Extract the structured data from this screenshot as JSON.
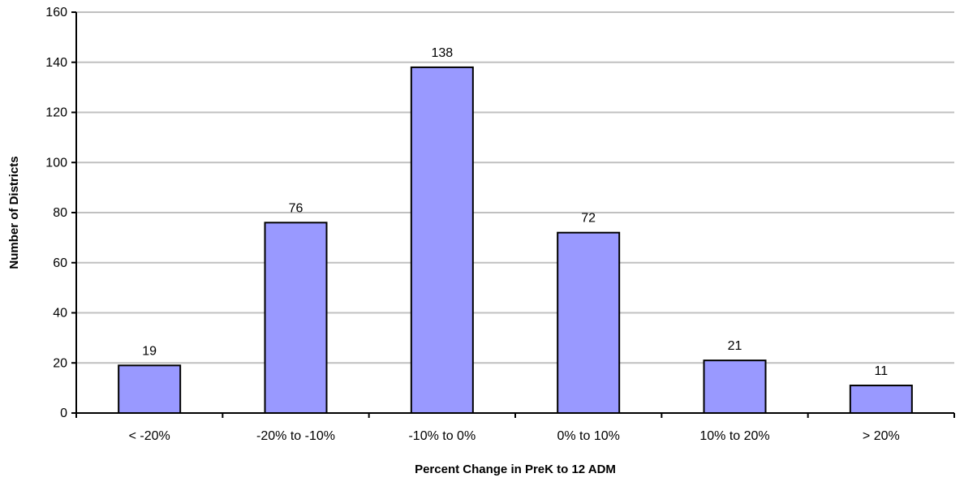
{
  "chart_data": {
    "type": "bar",
    "title": "",
    "xlabel": "Percent Change in PreK to 12 ADM",
    "ylabel": "Number of Districts",
    "categories": [
      "< -20%",
      "-20% to -10%",
      "-10% to 0%",
      "0% to 10%",
      "10% to 20%",
      "> 20%"
    ],
    "values": [
      19,
      76,
      138,
      72,
      21,
      11
    ],
    "ylim": [
      0,
      160
    ],
    "yticks": [
      0,
      20,
      40,
      60,
      80,
      100,
      120,
      140,
      160
    ],
    "grid": true,
    "legend": "none",
    "colors": {
      "bar_fill": "#9999ff",
      "bar_stroke": "#000000",
      "grid": "#c0c0c0"
    }
  }
}
